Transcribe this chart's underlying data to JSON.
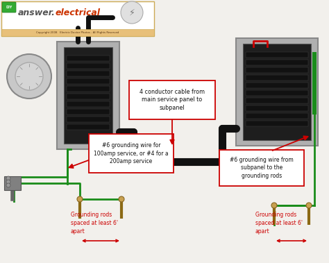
{
  "bg_color": "#f2f0ec",
  "copyright_text": "Copyright 2008   Electric Doctor Photos - All Rights Reserved",
  "annotation_center": "4 conductor cable from\nmain service panel to\nsubpanel",
  "annotation_left_ground": "#6 grounding wire for\n100amp service, or #4 for a\n200amp service",
  "annotation_right_ground": "#6 grounding wire from\nsubpanel to the\ngrounding rods",
  "annotation_left_rods": "Grounding rods\nspaced at least 6'\napart",
  "annotation_right_rods": "Grounding rods\nspaced at least 6'\napart",
  "red_box_color": "#cc0000",
  "green_wire_color": "#1a8c1a",
  "black_wire_color": "#111111",
  "red_wire_color": "#cc0000",
  "gray_panel_color": "#b0b0b0",
  "panel_dark": "#2a2a2a",
  "rod_color": "#8B6914",
  "logo_green": "#33aa33",
  "logo_text_color": "#cc3300"
}
